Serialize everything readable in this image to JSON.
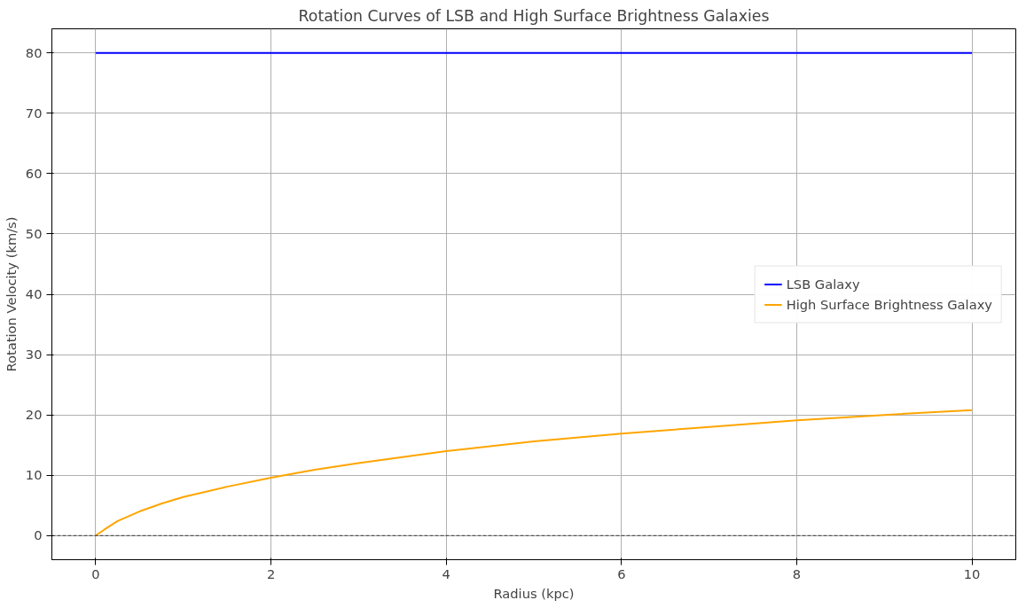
{
  "chart_data": {
    "type": "line",
    "title": "Rotation Curves of LSB and High Surface Brightness Galaxies",
    "xlabel": "Radius (kpc)",
    "ylabel": "Rotation Velocity (km/s)",
    "series": [
      {
        "name": "LSB Galaxy",
        "color": "#0000ff",
        "x": [
          0,
          10
        ],
        "values": [
          80,
          80
        ]
      },
      {
        "name": "High Surface Brightness Galaxy",
        "color": "#ffa500",
        "x": [
          0,
          0.1,
          0.25,
          0.5,
          0.75,
          1,
          1.5,
          2,
          2.5,
          3,
          4,
          5,
          6,
          7,
          8,
          9,
          10
        ],
        "values": [
          0,
          1,
          2.4,
          4,
          5.3,
          6.4,
          8.1,
          9.6,
          10.9,
          12,
          14,
          15.6,
          16.9,
          18,
          19.1,
          20,
          20.8
        ]
      }
    ],
    "xlim": [
      -0.5,
      10.5
    ],
    "ylim": [
      -4,
      84
    ],
    "xticks": [
      0,
      2,
      4,
      6,
      8,
      10
    ],
    "yticks": [
      0,
      10,
      20,
      30,
      40,
      50,
      60,
      70,
      80
    ],
    "ref_lines": [
      {
        "axis": "y",
        "value": 0,
        "color": "#000000",
        "line_style": "dashed"
      }
    ],
    "grid": true,
    "legend": "right",
    "line_style": "solid"
  }
}
